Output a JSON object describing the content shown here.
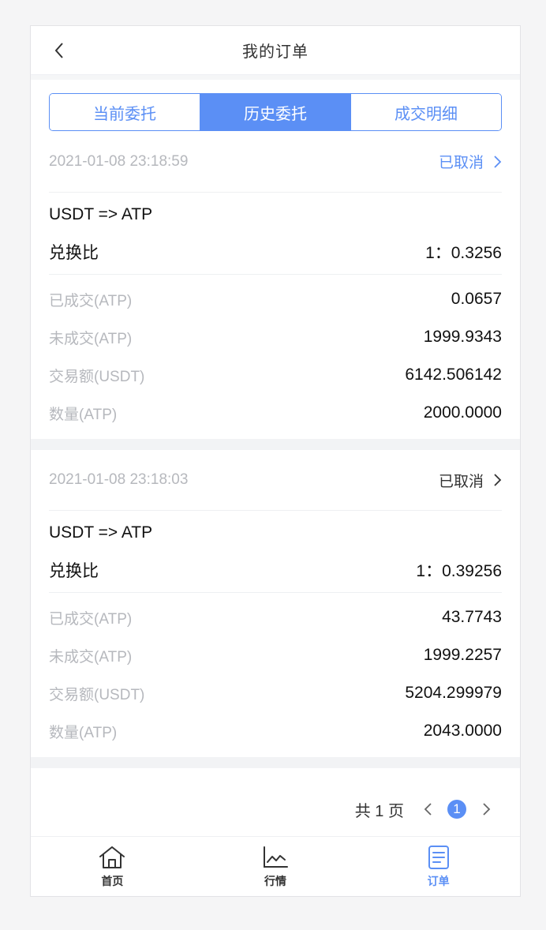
{
  "header": {
    "title": "我的订单"
  },
  "tabs": [
    {
      "label": "当前委托",
      "active": false
    },
    {
      "label": "历史委托",
      "active": true
    },
    {
      "label": "成交明细",
      "active": false
    }
  ],
  "orders": [
    {
      "time": "2021-01-08 23:18:59",
      "status": "已取消",
      "status_color": "#5b8ff5",
      "pair": "USDT => ATP",
      "ratio_label": "兑换比",
      "ratio_value": "1：0.3256",
      "filled_label": "已成交(ATP)",
      "filled_value": "0.0657",
      "unfilled_label": "未成交(ATP)",
      "unfilled_value": "1999.9343",
      "amount_label": "交易额(USDT)",
      "amount_value": "6142.506142",
      "qty_label": "数量(ATP)",
      "qty_value": "2000.0000"
    },
    {
      "time": "2021-01-08 23:18:03",
      "status": "已取消",
      "status_color": "#333333",
      "pair": "USDT => ATP",
      "ratio_label": "兑换比",
      "ratio_value": "1：0.39256",
      "filled_label": "已成交(ATP)",
      "filled_value": "43.7743",
      "unfilled_label": "未成交(ATP)",
      "unfilled_value": "1999.2257",
      "amount_label": "交易额(USDT)",
      "amount_value": "5204.299979",
      "qty_label": "数量(ATP)",
      "qty_value": "2043.0000"
    }
  ],
  "pager": {
    "total": "共 1 页",
    "current": "1"
  },
  "tabbar": [
    {
      "label": "首页",
      "icon": "home-icon",
      "active": false
    },
    {
      "label": "行情",
      "icon": "chart-icon",
      "active": false
    },
    {
      "label": "订单",
      "icon": "order-icon",
      "active": true
    }
  ],
  "colors": {
    "accent": "#5b8ff5",
    "muted": "#b6b8bd"
  }
}
